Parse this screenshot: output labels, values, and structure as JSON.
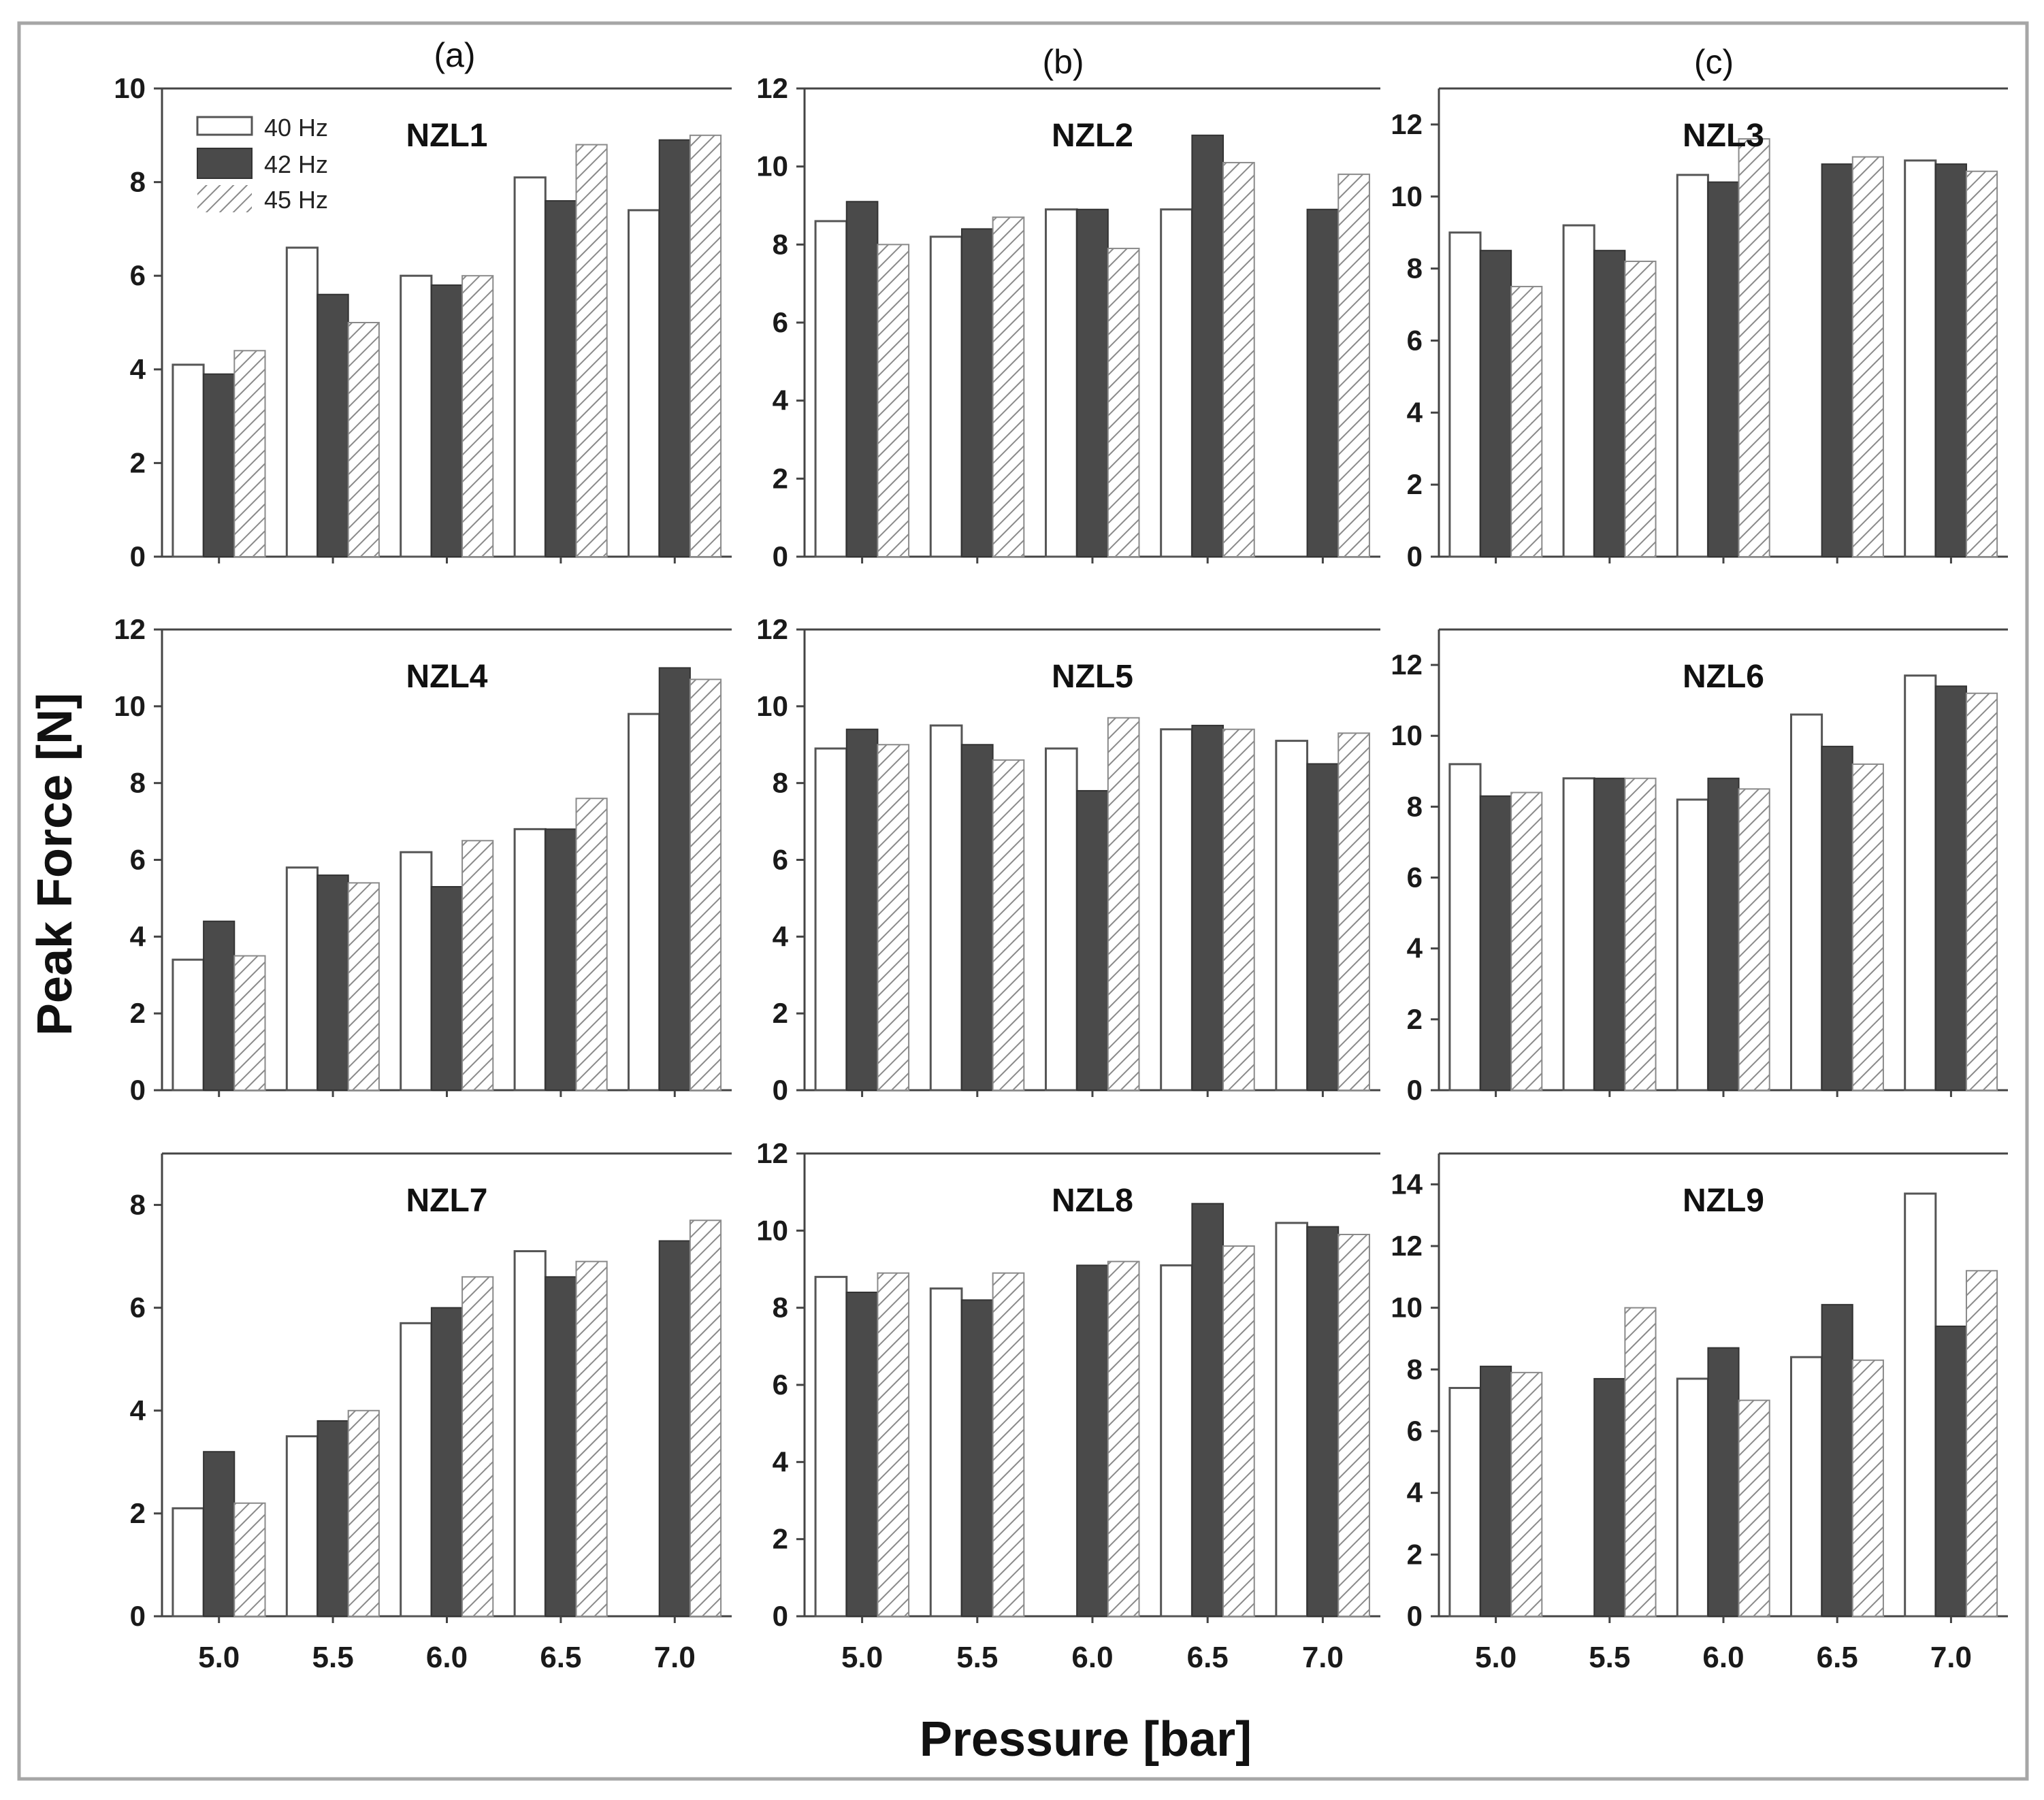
{
  "colors": {
    "hz40": "#ffffff",
    "hz42": "#4a4a4a",
    "hz45_hatch": "#8a8a8a",
    "frame": "#a6a6a6",
    "axis": "#444444"
  },
  "figure": {
    "ylabel": "Peak Force [N]",
    "xlabel": "Pressure [bar]",
    "column_letters": [
      "(a)",
      "(b)",
      "(c)"
    ]
  },
  "legend": {
    "items": [
      {
        "label": "40 Hz",
        "style": "open"
      },
      {
        "label": "42 Hz",
        "style": "dark"
      },
      {
        "label": "45 Hz",
        "style": "hatch"
      }
    ]
  },
  "chart_data": [
    {
      "type": "bar",
      "title": "NZL1",
      "categories": [
        "5.0",
        "5.5",
        "6.0",
        "6.5",
        "7.0"
      ],
      "ylim": [
        0,
        10
      ],
      "yticks": [
        0,
        2,
        4,
        6,
        8,
        10
      ],
      "xlabel": "Pressure [bar]",
      "ylabel": "Peak Force [N]",
      "series": [
        {
          "name": "40 Hz",
          "values": [
            4.1,
            6.6,
            6.0,
            8.1,
            7.4
          ]
        },
        {
          "name": "42 Hz",
          "values": [
            3.9,
            5.6,
            5.8,
            7.6,
            8.9
          ]
        },
        {
          "name": "45 Hz",
          "values": [
            4.4,
            5.0,
            6.0,
            8.8,
            9.0
          ]
        }
      ]
    },
    {
      "type": "bar",
      "title": "NZL2",
      "categories": [
        "5.0",
        "5.5",
        "6.0",
        "6.5",
        "7.0"
      ],
      "ylim": [
        0,
        12
      ],
      "yticks": [
        0,
        2,
        4,
        6,
        8,
        10,
        12
      ],
      "xlabel": "Pressure [bar]",
      "ylabel": "Peak Force [N]",
      "series": [
        {
          "name": "40 Hz",
          "values": [
            8.6,
            8.2,
            8.9,
            8.9,
            0
          ]
        },
        {
          "name": "42 Hz",
          "values": [
            9.1,
            8.4,
            8.9,
            10.8,
            8.9
          ]
        },
        {
          "name": "45 Hz",
          "values": [
            8.0,
            8.7,
            7.9,
            10.1,
            9.8
          ]
        }
      ]
    },
    {
      "type": "bar",
      "title": "NZL3",
      "categories": [
        "5.0",
        "5.5",
        "6.0",
        "6.5",
        "7.0"
      ],
      "ylim": [
        0,
        13
      ],
      "yticks": [
        0,
        2,
        4,
        6,
        8,
        10,
        12
      ],
      "xlabel": "Pressure [bar]",
      "ylabel": "Peak Force [N]",
      "series": [
        {
          "name": "40 Hz",
          "values": [
            9.0,
            9.2,
            10.6,
            0,
            11.0
          ]
        },
        {
          "name": "42 Hz",
          "values": [
            8.5,
            8.5,
            10.4,
            10.9,
            10.9
          ]
        },
        {
          "name": "45 Hz",
          "values": [
            7.5,
            8.2,
            11.6,
            11.1,
            10.7
          ]
        }
      ]
    },
    {
      "type": "bar",
      "title": "NZL4",
      "categories": [
        "5.0",
        "5.5",
        "6.0",
        "6.5",
        "7.0"
      ],
      "ylim": [
        0,
        12
      ],
      "yticks": [
        0,
        2,
        4,
        6,
        8,
        10,
        12
      ],
      "xlabel": "Pressure [bar]",
      "ylabel": "Peak Force [N]",
      "series": [
        {
          "name": "40 Hz",
          "values": [
            3.4,
            5.8,
            6.2,
            6.8,
            9.8
          ]
        },
        {
          "name": "42 Hz",
          "values": [
            4.4,
            5.6,
            5.3,
            6.8,
            11.0
          ]
        },
        {
          "name": "45 Hz",
          "values": [
            3.5,
            5.4,
            6.5,
            7.6,
            10.7
          ]
        }
      ]
    },
    {
      "type": "bar",
      "title": "NZL5",
      "categories": [
        "5.0",
        "5.5",
        "6.0",
        "6.5",
        "7.0"
      ],
      "ylim": [
        0,
        12
      ],
      "yticks": [
        0,
        2,
        4,
        6,
        8,
        10,
        12
      ],
      "xlabel": "Pressure [bar]",
      "ylabel": "Peak Force [N]",
      "series": [
        {
          "name": "40 Hz",
          "values": [
            8.9,
            9.5,
            8.9,
            9.4,
            9.1
          ]
        },
        {
          "name": "42 Hz",
          "values": [
            9.4,
            9.0,
            7.8,
            9.5,
            8.5
          ]
        },
        {
          "name": "45 Hz",
          "values": [
            9.0,
            8.6,
            9.7,
            9.4,
            9.3
          ]
        }
      ]
    },
    {
      "type": "bar",
      "title": "NZL6",
      "categories": [
        "5.0",
        "5.5",
        "6.0",
        "6.5",
        "7.0"
      ],
      "ylim": [
        0,
        13
      ],
      "yticks": [
        0,
        2,
        4,
        6,
        8,
        10,
        12
      ],
      "xlabel": "Pressure [bar]",
      "ylabel": "Peak Force [N]",
      "series": [
        {
          "name": "40 Hz",
          "values": [
            9.2,
            8.8,
            8.2,
            10.6,
            11.7
          ]
        },
        {
          "name": "42 Hz",
          "values": [
            8.3,
            8.8,
            8.8,
            9.7,
            11.4
          ]
        },
        {
          "name": "45 Hz",
          "values": [
            8.4,
            8.8,
            8.5,
            9.2,
            11.2
          ]
        }
      ]
    },
    {
      "type": "bar",
      "title": "NZL7",
      "categories": [
        "5.0",
        "5.5",
        "6.0",
        "6.5",
        "7.0"
      ],
      "ylim": [
        0,
        9
      ],
      "yticks": [
        0,
        2,
        4,
        6,
        8
      ],
      "xlabel": "Pressure [bar]",
      "ylabel": "Peak Force [N]",
      "series": [
        {
          "name": "40 Hz",
          "values": [
            2.1,
            3.5,
            5.7,
            7.1,
            0
          ]
        },
        {
          "name": "42 Hz",
          "values": [
            3.2,
            3.8,
            6.0,
            6.6,
            7.3
          ]
        },
        {
          "name": "45 Hz",
          "values": [
            2.2,
            4.0,
            6.6,
            6.9,
            7.7
          ]
        }
      ]
    },
    {
      "type": "bar",
      "title": "NZL8",
      "categories": [
        "5.0",
        "5.5",
        "6.0",
        "6.5",
        "7.0"
      ],
      "ylim": [
        0,
        12
      ],
      "yticks": [
        0,
        2,
        4,
        6,
        8,
        10,
        12
      ],
      "xlabel": "Pressure [bar]",
      "ylabel": "Peak Force [N]",
      "series": [
        {
          "name": "40 Hz",
          "values": [
            8.8,
            8.5,
            0,
            9.1,
            10.2
          ]
        },
        {
          "name": "42 Hz",
          "values": [
            8.4,
            8.2,
            9.1,
            10.7,
            10.1
          ]
        },
        {
          "name": "45 Hz",
          "values": [
            8.9,
            8.9,
            9.2,
            9.6,
            9.9
          ]
        }
      ]
    },
    {
      "type": "bar",
      "title": "NZL9",
      "categories": [
        "5.0",
        "5.5",
        "6.0",
        "6.5",
        "7.0"
      ],
      "ylim": [
        0,
        15
      ],
      "yticks": [
        0,
        2,
        4,
        6,
        8,
        10,
        12,
        14
      ],
      "xlabel": "Pressure [bar]",
      "ylabel": "Peak Force [N]",
      "series": [
        {
          "name": "40 Hz",
          "values": [
            7.4,
            0,
            7.7,
            8.4,
            13.7
          ]
        },
        {
          "name": "42 Hz",
          "values": [
            8.1,
            7.7,
            8.7,
            10.1,
            9.4
          ]
        },
        {
          "name": "45 Hz",
          "values": [
            7.9,
            10.0,
            7.0,
            8.3,
            11.2
          ]
        }
      ]
    }
  ]
}
